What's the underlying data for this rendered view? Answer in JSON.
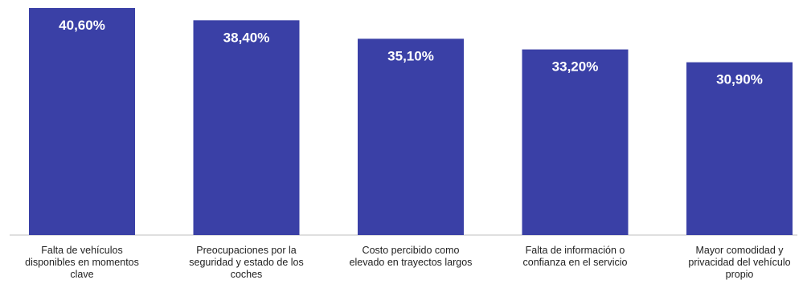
{
  "chart_data": {
    "type": "bar",
    "categories": [
      [
        "Falta de vehículos",
        "disponibles en momentos",
        "clave"
      ],
      [
        "Preocupaciones por la",
        "seguridad y estado de los",
        "coches"
      ],
      [
        "Costo percibido como",
        "elevado en trayectos largos"
      ],
      [
        "Falta de información o",
        "confianza en el servicio"
      ],
      [
        "Mayor comodidad y",
        "privacidad del vehículo",
        "propio"
      ]
    ],
    "values": [
      40.6,
      38.4,
      35.1,
      33.2,
      30.9
    ],
    "value_labels": [
      "40,60%",
      "38,40%",
      "35,10%",
      "33,20%",
      "30,90%"
    ],
    "ylim": [
      0,
      40.6
    ],
    "grid": false,
    "legend": "none",
    "colors": {
      "bar": "#3a40a6",
      "bar_label": "#ffffff",
      "axis": "#bfbfbf",
      "category_text": "#222222"
    }
  }
}
